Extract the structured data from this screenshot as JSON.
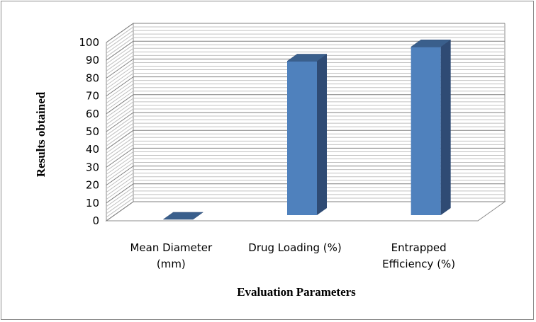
{
  "chart_data": {
    "type": "bar",
    "style": "3d-column",
    "categories": [
      [
        "Mean Diameter",
        "(mm)"
      ],
      [
        "Drug Loading (%)"
      ],
      [
        "Entrapped",
        "Efficiency (%)"
      ]
    ],
    "values": [
      0.8,
      89.5,
      97.5
    ],
    "xlabel": "Evaluation Parameters",
    "ylabel": "Results obtained",
    "ylim": [
      0,
      100
    ],
    "yticks": [
      "0",
      "10",
      "20",
      "30",
      "40",
      "50",
      "60",
      "70",
      "80",
      "90",
      "100"
    ],
    "grid": true,
    "legend": "none",
    "colors": {
      "bar_front": "#4f81bd",
      "bar_top": "#3a5f8c",
      "bar_side": "#2f4b74",
      "gridline": "#8c8c8c",
      "frame": "#8c8c8c"
    }
  }
}
